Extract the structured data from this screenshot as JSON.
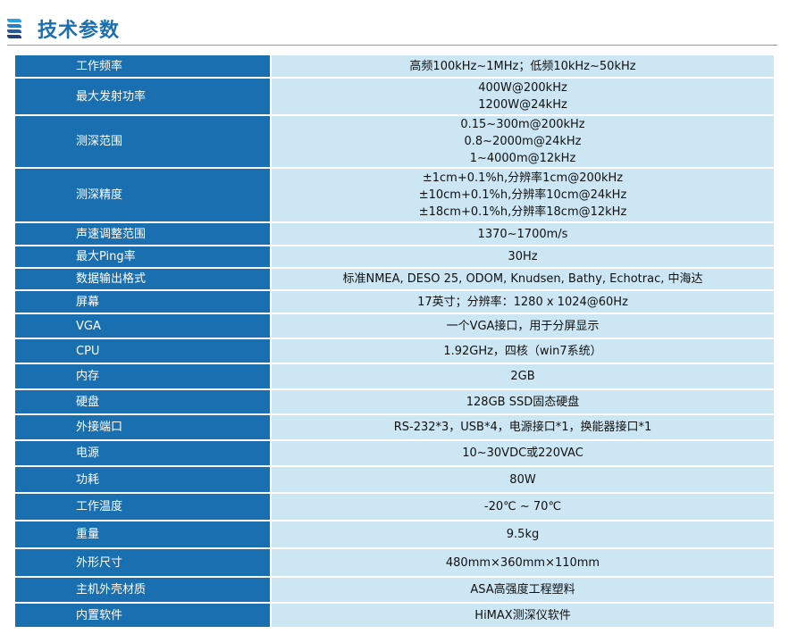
{
  "title": "技术参数",
  "colors": {
    "key_bg": "#1a6fb0",
    "value_bg": "#cce6f4",
    "title": "#1a6fb0"
  },
  "rows": [
    {
      "key": "工作频率",
      "values": [
        "高频100kHz~1MHz；低频10kHz~50kHz"
      ]
    },
    {
      "key": "最大发射功率",
      "values": [
        "400W@200kHz",
        "1200W@24kHz"
      ]
    },
    {
      "key": "测深范围",
      "values": [
        "0.15~300m@200kHz",
        "0.8~2000m@24kHz",
        "1~4000m@12kHz"
      ]
    },
    {
      "key": "测深精度",
      "values": [
        "±1cm+0.1%h,分辨率1cm@200kHz",
        "±10cm+0.1%h,分辨率10cm@24kHz",
        "±18cm+0.1%h,分辨率18cm@12kHz"
      ]
    },
    {
      "key": "声速调整范围",
      "values": [
        "1370~1700m/s"
      ]
    },
    {
      "key": "最大Ping率",
      "values": [
        "30Hz"
      ]
    },
    {
      "key": "数据输出格式",
      "values": [
        "标准NMEA, DESO 25, ODOM, Knudsen, Bathy, Echotrac, 中海达"
      ]
    },
    {
      "key": "屏幕",
      "values": [
        "17英寸；分辨率：1280 x 1024@60Hz"
      ]
    },
    {
      "key": "VGA",
      "values": [
        "一个VGA接口，用于分屏显示"
      ]
    },
    {
      "key": "CPU",
      "values": [
        "1.92GHz，四核（win7系统）"
      ]
    },
    {
      "key": "内存",
      "values": [
        "2GB"
      ]
    },
    {
      "key": "硬盘",
      "values": [
        "128GB SSD固态硬盘"
      ]
    },
    {
      "key": "外接端口",
      "values": [
        "RS-232*3，USB*4，电源接口*1，换能器接口*1"
      ]
    },
    {
      "key": "电源",
      "values": [
        "10~30VDC或220VAC"
      ]
    },
    {
      "key": "功耗",
      "values": [
        "80W"
      ]
    },
    {
      "key": "工作温度",
      "values": [
        "-20℃ ~ 70℃"
      ]
    },
    {
      "key": "重量",
      "values": [
        "9.5kg"
      ]
    },
    {
      "key": "外形尺寸",
      "values": [
        "480mm×360mm×110mm"
      ]
    },
    {
      "key": "主机外壳材质",
      "values": [
        "ASA高强度工程塑料"
      ]
    },
    {
      "key": "内置软件",
      "values": [
        "HiMAX测深仪软件"
      ]
    }
  ]
}
